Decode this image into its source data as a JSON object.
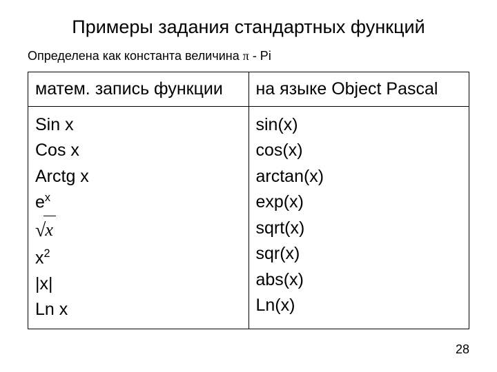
{
  "title": "Примеры задания стандартных функций",
  "subtitle_prefix": "Определена как константа величина ",
  "subtitle_suffix": " - Pi",
  "pi_char": "π",
  "table": {
    "headers": [
      "матем. запись функции",
      "на языке Object Pascal"
    ],
    "col_widths": [
      "50%",
      "50%"
    ],
    "border_color": "#000000",
    "left_cells": {
      "sin": "Sin x",
      "cos": "Cos x",
      "arctg": "Arctg x",
      "exp_base": "e",
      "exp_sup": "x",
      "sqrt_sym": "√",
      "sqrt_arg": "x",
      "sqr_base": "x",
      "sqr_sup": "2",
      "abs": "|x|",
      "ln": "Ln x"
    },
    "right_cells": {
      "sin": "sin(x)",
      "cos": "cos(x)",
      "arctan": "arctan(x)",
      "exp": "exp(x)",
      "sqrt": "sqrt(x)",
      "sqr": "sqr(x)",
      "abs": "abs(x)",
      "ln": "Ln(x)"
    }
  },
  "page_number": "28",
  "colors": {
    "background": "#ffffff",
    "text": "#000000"
  },
  "fonts": {
    "title_size": 27,
    "subtitle_size": 18,
    "header_size": 25,
    "cell_size": 25,
    "page_num_size": 18
  }
}
